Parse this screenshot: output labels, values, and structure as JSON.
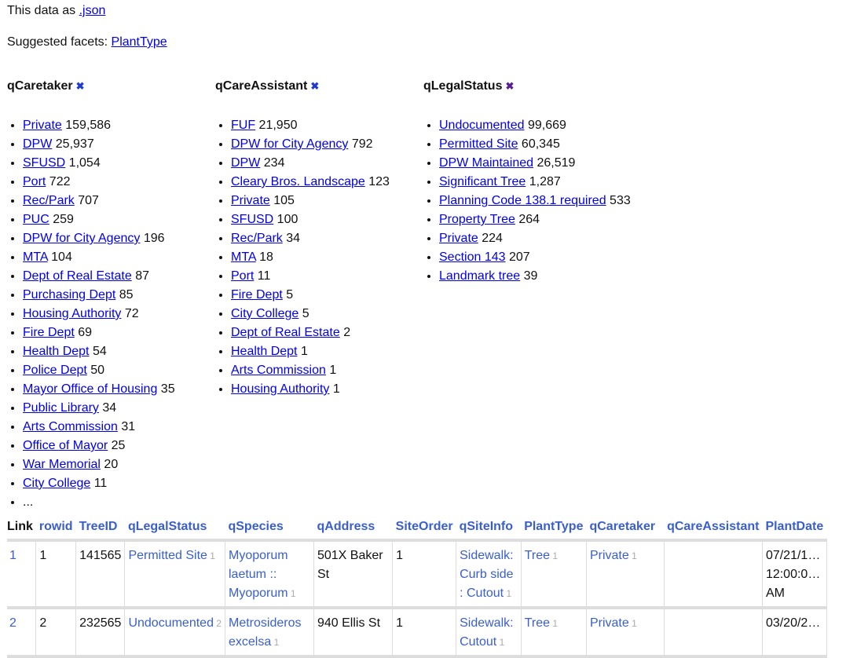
{
  "intro": {
    "prefix": "This data as ",
    "json_link": ".json"
  },
  "suggested": {
    "label": "Suggested facets: ",
    "facet": "PlantType"
  },
  "facets": [
    {
      "title": "qCaretaker",
      "remove_color": "#1f3ccf",
      "items": [
        [
          "Private",
          "159,586"
        ],
        [
          "DPW",
          "25,937"
        ],
        [
          "SFUSD",
          "1,054"
        ],
        [
          "Port",
          "722"
        ],
        [
          "Rec/Park",
          "707"
        ],
        [
          "PUC",
          "259"
        ],
        [
          "DPW for City Agency",
          "196"
        ],
        [
          "MTA",
          "104"
        ],
        [
          "Dept of Real Estate",
          "87"
        ],
        [
          "Purchasing Dept",
          "85"
        ],
        [
          "Housing Authority",
          "72"
        ],
        [
          "Fire Dept",
          "69"
        ],
        [
          "Health Dept",
          "54"
        ],
        [
          "Police Dept",
          "50"
        ],
        [
          "Mayor Office of Housing",
          "35"
        ],
        [
          "Public Library",
          "34"
        ],
        [
          "Arts Commission",
          "31"
        ],
        [
          "Office of Mayor",
          "25"
        ],
        [
          "War Memorial",
          "20"
        ],
        [
          "City College",
          "11"
        ]
      ],
      "more": "..."
    },
    {
      "title": "qCareAssistant",
      "remove_color": "#1f3ccf",
      "items": [
        [
          "FUF",
          "21,950"
        ],
        [
          "DPW for City Agency",
          "792"
        ],
        [
          "DPW",
          "234"
        ],
        [
          "Cleary Bros. Landscape",
          "123"
        ],
        [
          "Private",
          "105"
        ],
        [
          "SFUSD",
          "100"
        ],
        [
          "Rec/Park",
          "34"
        ],
        [
          "MTA",
          "18"
        ],
        [
          "Port",
          "11"
        ],
        [
          "Fire Dept",
          "5"
        ],
        [
          "City College",
          "5"
        ],
        [
          "Dept of Real Estate",
          "2"
        ],
        [
          "Health Dept",
          "1"
        ],
        [
          "Arts Commission",
          "1"
        ],
        [
          "Housing Authority",
          "1"
        ]
      ]
    },
    {
      "title": "qLegalStatus",
      "remove_color": "#5a1f8f",
      "items": [
        [
          "Undocumented",
          "99,669"
        ],
        [
          "Permitted Site",
          "60,345"
        ],
        [
          "DPW Maintained",
          "26,519"
        ],
        [
          "Significant Tree",
          "1,287"
        ],
        [
          "Planning Code 138.1 required",
          "533"
        ],
        [
          "Property Tree",
          "264"
        ],
        [
          "Private",
          "224"
        ],
        [
          "Section 143",
          "207"
        ],
        [
          "Landmark tree",
          "39"
        ]
      ]
    }
  ],
  "table": {
    "columns": [
      "Link",
      "rowid",
      "TreeID",
      "qLegalStatus",
      "qSpecies",
      "qAddress",
      "SiteOrder",
      "qSiteInfo",
      "PlantType",
      "qCaretaker",
      "qCareAssistant",
      "PlantDate"
    ],
    "rows": [
      {
        "link": "1",
        "rowid": "1",
        "treeid": "141565",
        "legal": [
          "Permitted Site",
          "1"
        ],
        "species": [
          "Myoporum laetum :: Myoporum",
          "1"
        ],
        "address": "501X Baker St",
        "siteorder": "1",
        "siteinfo": [
          "Sidewalk: Curb side : Cutout",
          "1"
        ],
        "planttype": [
          "Tree",
          "1"
        ],
        "caretaker": [
          "Private",
          "1"
        ],
        "assistant": "",
        "plantdate": "07/21/1… 12:00:0… AM"
      },
      {
        "link": "2",
        "rowid": "2",
        "treeid": "232565",
        "legal": [
          "Undocumented",
          "2"
        ],
        "species": [
          "Metrosideros excelsa",
          "1"
        ],
        "address": "940 Ellis St",
        "siteorder": "1",
        "siteinfo": [
          "Sidewalk: Cutout",
          "1"
        ],
        "planttype": [
          "Tree",
          "1"
        ],
        "caretaker": [
          "Private",
          "1"
        ],
        "assistant": "",
        "plantdate": "03/20/2…"
      }
    ]
  }
}
